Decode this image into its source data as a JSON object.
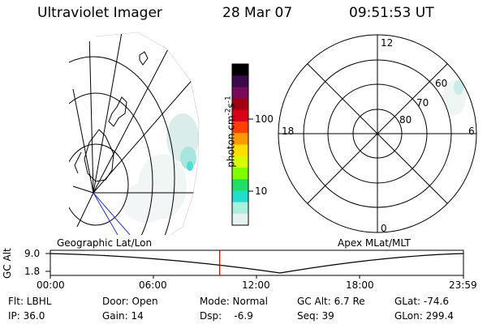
{
  "header": {
    "instrument": "Ultraviolet Imager",
    "date": "28 Mar 07",
    "time": "09:51:53 UT"
  },
  "geo_panel": {
    "label": "Geographic Lat/Lon"
  },
  "apex_panel": {
    "label": "Apex MLat/MLT",
    "mlt_labels": {
      "top": "12",
      "left": "18",
      "right": "6",
      "bottom": "0"
    },
    "lat_labels": [
      "60",
      "70",
      "80"
    ]
  },
  "colorbar": {
    "unit_text": "photon cm",
    "unit_exp1": "-2",
    "unit_s": "s",
    "unit_exp2": "-1",
    "scale": "log",
    "ticks": [
      "100",
      "10"
    ],
    "colors": [
      "#000000",
      "#3a0a4a",
      "#7a0a5a",
      "#a00010",
      "#d8001a",
      "#ff4000",
      "#ff9900",
      "#ffdd00",
      "#d6ff00",
      "#80ff00",
      "#22dd66",
      "#22ddcc",
      "#aaeedd",
      "#e6f2f0"
    ]
  },
  "timeline": {
    "ylabel": "GC Alt",
    "yticks": [
      "9.0",
      "1.8"
    ],
    "xticks": [
      "00:00",
      "06:00",
      "12:00",
      "18:00",
      "23:59"
    ],
    "current_time_fraction": 0.41,
    "marker_color": "#cc0000"
  },
  "info": {
    "filter": "Flt: LBHL",
    "door": "Door: Open",
    "mode": "Mode: Normal",
    "gc_alt": "GC Alt: 6.7 Re",
    "glat": "GLat: -74.6",
    "ip": "IP: 36.0",
    "gain": "Gain: 14",
    "dsp": "Dsp:    -6.9",
    "seq": "Seq: 39",
    "glon": "GLon: 299.4"
  }
}
